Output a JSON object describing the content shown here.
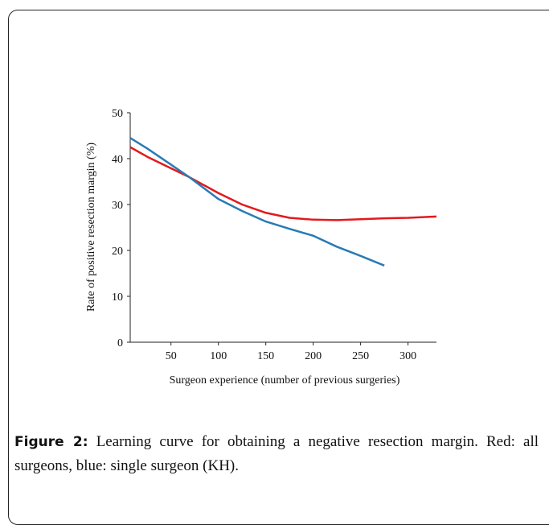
{
  "chart_data": {
    "type": "line",
    "xlabel": "Surgeon experience (number of previous surgeries)",
    "ylabel": "Rate of positive resection margin (%)",
    "x": [
      7,
      25,
      50,
      69,
      100,
      125,
      150,
      175,
      200,
      225,
      250,
      275,
      300,
      330
    ],
    "series": [
      {
        "name": "all surgeons",
        "color": "#e3191c",
        "values": [
          42.5,
          40.4,
          37.9,
          36,
          32.5,
          30,
          28.2,
          27.1,
          26.7,
          26.6,
          26.8,
          27,
          27.1,
          27.4
        ]
      },
      {
        "name": "single surgeon (KH)",
        "color": "#2a7ab5",
        "values": [
          44.5,
          42.2,
          38.7,
          36,
          31.2,
          28.6,
          26.3,
          24.7,
          23.2,
          20.8,
          18.8,
          16.7,
          null,
          null
        ]
      }
    ],
    "xlim": [
      7,
      330
    ],
    "ylim": [
      0,
      50
    ],
    "xticks": [
      50,
      100,
      150,
      200,
      250,
      300
    ],
    "yticks": [
      0,
      10,
      20,
      30,
      40,
      50
    ]
  },
  "caption": {
    "label": "Figure 2:",
    "text": "Learning curve for obtaining a negative resection margin. Red: all surgeons, blue: single surgeon (KH)."
  }
}
